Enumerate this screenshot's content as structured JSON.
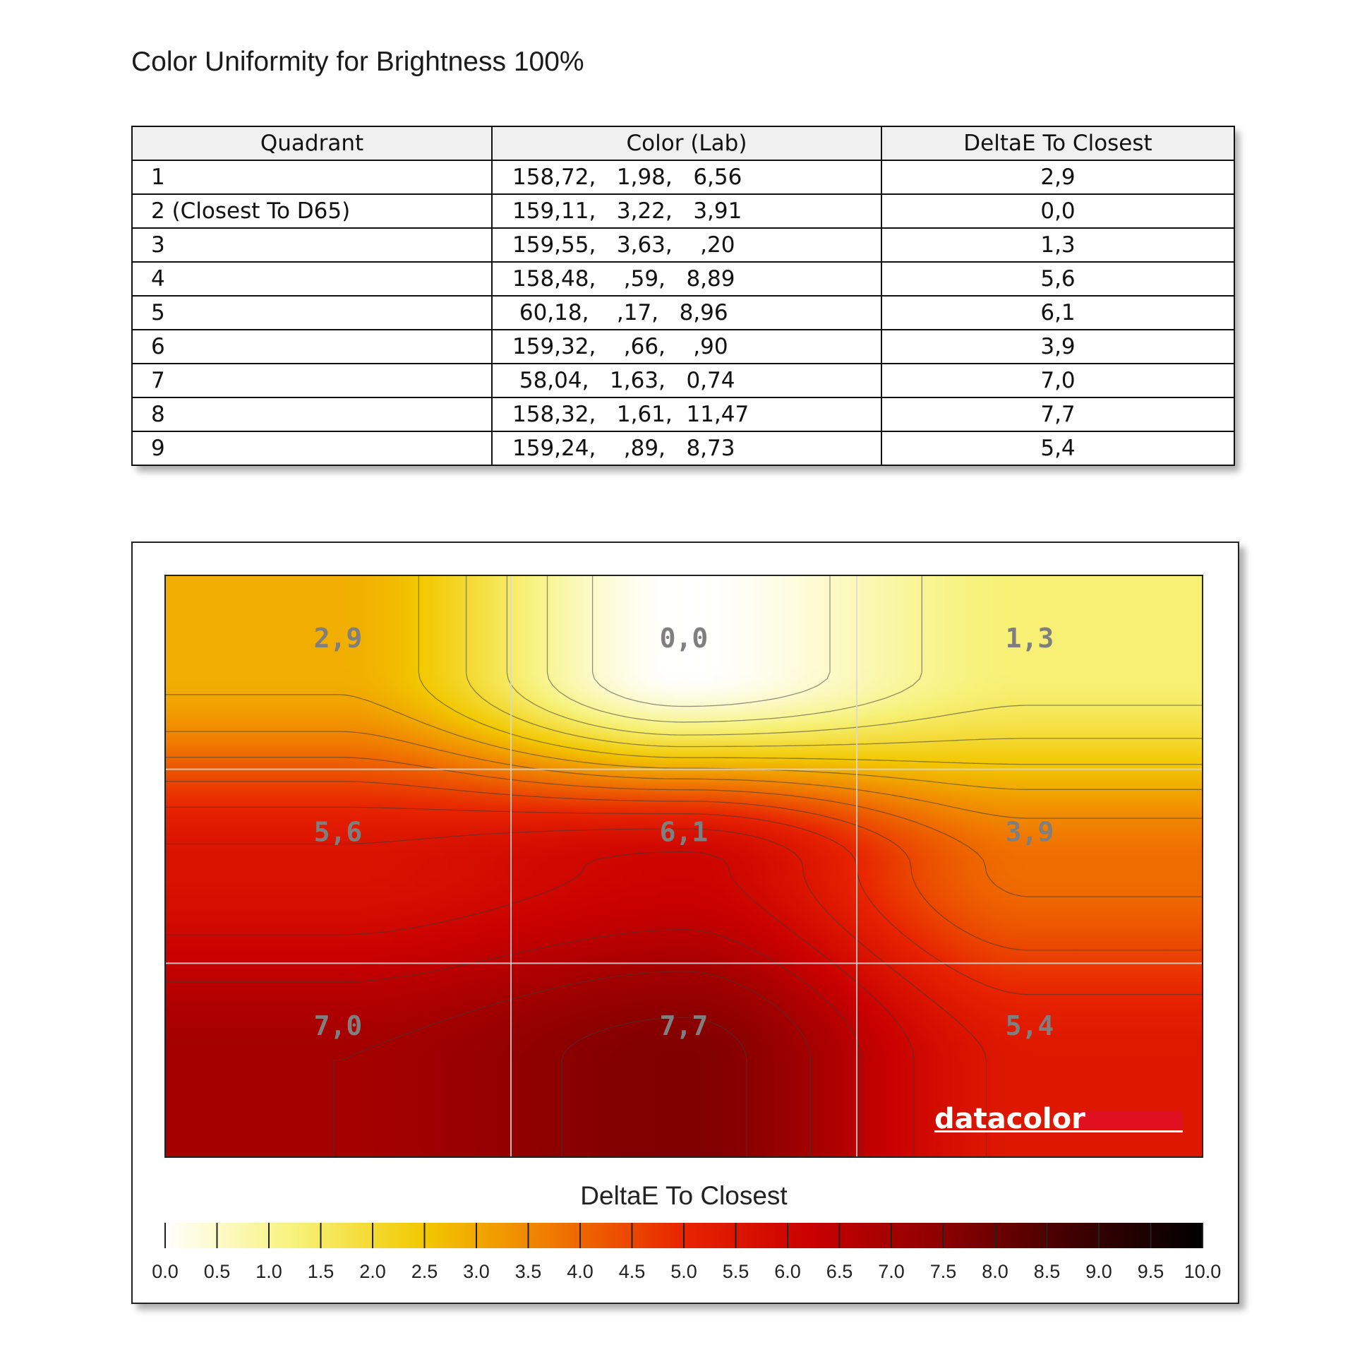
{
  "title": "Color Uniformity for Brightness 100%",
  "table": {
    "headers": [
      "Quadrant",
      "Color (Lab)",
      "DeltaE To Closest"
    ],
    "rows": [
      [
        "1",
        "158,72,   1,98,   6,56",
        "2,9"
      ],
      [
        "2 (Closest To D65)",
        "159,11,   3,22,   3,91",
        "0,0"
      ],
      [
        "3",
        "159,55,   3,63,    ,20",
        "1,3"
      ],
      [
        "4",
        "158,48,    ,59,   8,89",
        "5,6"
      ],
      [
        "5",
        " 60,18,    ,17,   8,96",
        "6,1"
      ],
      [
        "6",
        "159,32,    ,66,    ,90",
        "3,9"
      ],
      [
        "7",
        " 58,04,   1,63,   0,74",
        "7,0"
      ],
      [
        "8",
        "158,32,   1,61,  11,47",
        "7,7"
      ],
      [
        "9",
        "159,24,    ,89,   8,73",
        "5,4"
      ]
    ]
  },
  "chart_data": {
    "type": "heatmap",
    "grid": [
      [
        2.9,
        0.0,
        1.3
      ],
      [
        5.6,
        6.1,
        3.9
      ],
      [
        7.0,
        7.7,
        5.4
      ]
    ],
    "cell_labels": [
      [
        "2,9",
        "0,0",
        "1,3"
      ],
      [
        "5,6",
        "6,1",
        "3,9"
      ],
      [
        "7,0",
        "7,7",
        "5,4"
      ]
    ],
    "colorbar": {
      "title": "DeltaE To Closest",
      "range": [
        0,
        10
      ],
      "ticks": [
        "0.0",
        "0.5",
        "1.0",
        "1.5",
        "2.0",
        "2.5",
        "3.0",
        "3.5",
        "4.0",
        "4.5",
        "5.0",
        "5.5",
        "6.0",
        "6.5",
        "7.0",
        "7.5",
        "8.0",
        "8.5",
        "9.0",
        "9.5",
        "10.0"
      ]
    },
    "contours": true,
    "grid_lines": true,
    "colormap": [
      "#ffffff",
      "#f7f27a",
      "#f2c800",
      "#f07800",
      "#e82400",
      "#c80000",
      "#8c0000",
      "#400000",
      "#000000"
    ],
    "brand": "datacolor",
    "brand_color": "#e01020"
  }
}
